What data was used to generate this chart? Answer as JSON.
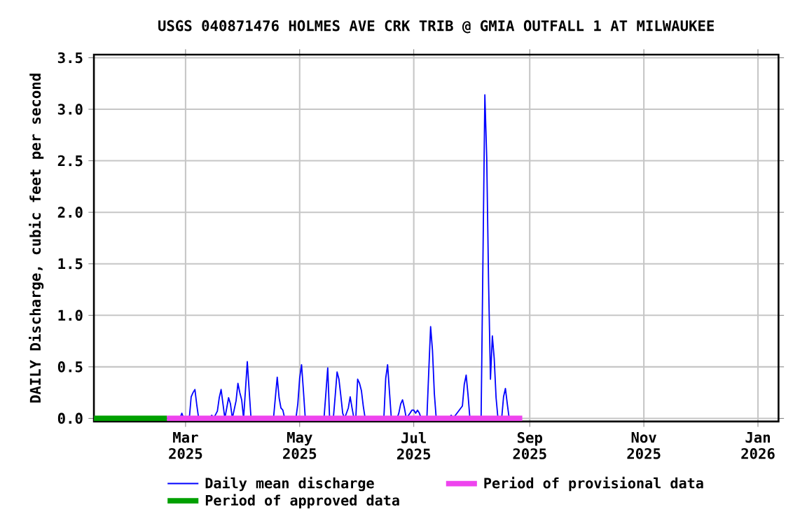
{
  "chart_data": {
    "type": "line",
    "title": "USGS 040871476 HOLMES AVE CRK TRIB @ GMIA OUTFALL 1 AT MILWAUKEE",
    "ylabel": "DAILY Discharge, cubic feet per second",
    "xlim": [
      "2025-01-11",
      "2026-01-12"
    ],
    "ylim": [
      -0.03,
      3.53
    ],
    "xticks": [
      {
        "value": "2025-03-01",
        "label": "Mar 2025"
      },
      {
        "value": "2025-05-01",
        "label": "May 2025"
      },
      {
        "value": "2025-07-01",
        "label": "Jul 2025"
      },
      {
        "value": "2025-09-01",
        "label": "Sep 2025"
      },
      {
        "value": "2025-11-01",
        "label": "Nov 2025"
      },
      {
        "value": "2026-01-01",
        "label": "Jan 2026"
      }
    ],
    "yticks": [
      {
        "value": 0,
        "label": "0.0"
      },
      {
        "value": 0.5,
        "label": "0.5"
      },
      {
        "value": 1,
        "label": "1.0"
      },
      {
        "value": 1.5,
        "label": "1.5"
      },
      {
        "value": 2,
        "label": "2.0"
      },
      {
        "value": 2.5,
        "label": "2.5"
      },
      {
        "value": 3,
        "label": "3.0"
      },
      {
        "value": 3.5,
        "label": "3.5"
      }
    ],
    "grid": true,
    "legend": "bottom",
    "marker": "none",
    "line_style": "solid",
    "series": [
      {
        "name": "Daily mean discharge",
        "color": "#0000ff",
        "x": [
          "2025-01-11",
          "2025-02-26",
          "2025-02-27",
          "2025-02-28",
          "2025-03-03",
          "2025-03-04",
          "2025-03-05",
          "2025-03-06",
          "2025-03-07",
          "2025-03-08",
          "2025-03-14",
          "2025-03-15",
          "2025-03-16",
          "2025-03-18",
          "2025-03-19",
          "2025-03-20",
          "2025-03-21",
          "2025-03-22",
          "2025-03-23",
          "2025-03-24",
          "2025-03-25",
          "2025-03-26",
          "2025-03-28",
          "2025-03-29",
          "2025-03-30",
          "2025-03-31",
          "2025-04-01",
          "2025-04-02",
          "2025-04-03",
          "2025-04-04",
          "2025-04-05",
          "2025-04-17",
          "2025-04-18",
          "2025-04-19",
          "2025-04-20",
          "2025-04-21",
          "2025-04-22",
          "2025-04-23",
          "2025-04-29",
          "2025-04-30",
          "2025-05-01",
          "2025-05-02",
          "2025-05-03",
          "2025-05-04",
          "2025-05-14",
          "2025-05-15",
          "2025-05-16",
          "2025-05-17",
          "2025-05-19",
          "2025-05-20",
          "2025-05-21",
          "2025-05-22",
          "2025-05-23",
          "2025-05-24",
          "2025-05-25",
          "2025-05-27",
          "2025-05-28",
          "2025-05-29",
          "2025-05-30",
          "2025-05-31",
          "2025-06-01",
          "2025-06-02",
          "2025-06-03",
          "2025-06-04",
          "2025-06-05",
          "2025-06-15",
          "2025-06-16",
          "2025-06-17",
          "2025-06-18",
          "2025-06-19",
          "2025-06-22",
          "2025-06-23",
          "2025-06-24",
          "2025-06-25",
          "2025-06-26",
          "2025-06-27",
          "2025-06-29",
          "2025-06-30",
          "2025-07-01",
          "2025-07-02",
          "2025-07-03",
          "2025-07-04",
          "2025-07-05",
          "2025-07-08",
          "2025-07-09",
          "2025-07-10",
          "2025-07-11",
          "2025-07-12",
          "2025-07-13",
          "2025-07-20",
          "2025-07-21",
          "2025-07-22",
          "2025-07-27",
          "2025-07-28",
          "2025-07-29",
          "2025-07-30",
          "2025-07-31",
          "2025-08-06",
          "2025-08-07",
          "2025-08-08",
          "2025-08-09",
          "2025-08-10",
          "2025-08-11",
          "2025-08-12",
          "2025-08-13",
          "2025-08-14",
          "2025-08-15",
          "2025-08-17",
          "2025-08-18",
          "2025-08-19",
          "2025-08-20",
          "2025-08-21",
          "2025-08-27"
        ],
        "values": [
          0,
          0,
          0.05,
          0,
          0,
          0.21,
          0.25,
          0.28,
          0.13,
          0,
          0,
          0.03,
          0,
          0.07,
          0.2,
          0.28,
          0.14,
          0,
          0.1,
          0.2,
          0.14,
          0,
          0.17,
          0.34,
          0.25,
          0.18,
          0,
          0.27,
          0.55,
          0.27,
          0,
          0,
          0.2,
          0.4,
          0.2,
          0.1,
          0.08,
          0,
          0,
          0.14,
          0.39,
          0.52,
          0.27,
          0,
          0,
          0.24,
          0.49,
          0,
          0,
          0.22,
          0.45,
          0.38,
          0.22,
          0.05,
          0,
          0.1,
          0.21,
          0.1,
          0,
          0,
          0.38,
          0.34,
          0.27,
          0.12,
          0,
          0,
          0.39,
          0.52,
          0.26,
          0,
          0,
          0.05,
          0.14,
          0.18,
          0.1,
          0,
          0.05,
          0.08,
          0.08,
          0.05,
          0.08,
          0.05,
          0,
          0,
          0.45,
          0.89,
          0.66,
          0.24,
          0,
          0,
          0.03,
          0,
          0.12,
          0.33,
          0.42,
          0.23,
          0,
          0,
          1.57,
          3.14,
          2.53,
          1.31,
          0.38,
          0.8,
          0.58,
          0.2,
          0,
          0,
          0.21,
          0.29,
          0.14,
          0,
          0
        ]
      },
      {
        "name": "Period of provisional data",
        "color": "#ee44ee",
        "x": [
          "2025-02-19",
          "2025-08-28"
        ],
        "values": [
          0,
          0
        ]
      },
      {
        "name": "Period of approved data",
        "color": "#00a000",
        "x": [
          "2025-01-11",
          "2025-02-19"
        ],
        "values": [
          0,
          0
        ]
      }
    ]
  }
}
